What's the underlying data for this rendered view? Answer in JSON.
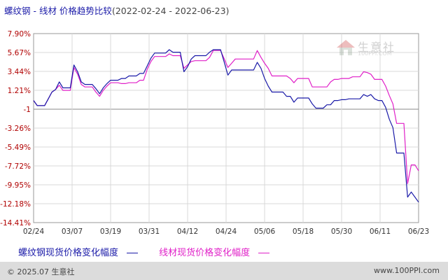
{
  "header": {
    "title": "螺纹钢 - 线材 价格趋势比较",
    "date_range": "(2022-02-24 - 2022-06-23)"
  },
  "colors": {
    "series_a": "#1a1aa8",
    "series_b": "#e020c8",
    "grid": "#d9d9d9",
    "zero_line": "#888888"
  },
  "chart_data": {
    "type": "line",
    "title": "螺纹钢 - 线材 价格趋势比较",
    "xlabel": "",
    "ylabel": "",
    "x_ticks": [
      "02/24",
      "03/07",
      "03/19",
      "03/31",
      "04/12",
      "04/24",
      "05/06",
      "05/18",
      "05/30",
      "06/11",
      "06/23"
    ],
    "y_ticks": [
      "7.90%",
      "5.67%",
      "3.44%",
      "1.21%",
      "-1",
      "-3.26%",
      "-5.49%",
      "-7.72%",
      "-9.95%",
      "-12.18%",
      "-14.41%"
    ],
    "ylim": [
      -14.41,
      7.9
    ],
    "grid": true,
    "legend_position": "bottom",
    "series": [
      {
        "name": "螺纹钢现货价格变化幅度",
        "points": [
          [
            0,
            0
          ],
          [
            1,
            -0.6
          ],
          [
            2,
            -0.6
          ],
          [
            3,
            -0.6
          ],
          [
            4,
            0.2
          ],
          [
            5,
            1.0
          ],
          [
            6,
            1.3
          ],
          [
            7,
            2.2
          ],
          [
            8,
            1.5
          ],
          [
            9,
            1.5
          ],
          [
            10,
            1.5
          ],
          [
            11,
            4.2
          ],
          [
            12,
            3.4
          ],
          [
            13,
            2.2
          ],
          [
            14,
            1.9
          ],
          [
            15,
            1.9
          ],
          [
            16,
            1.9
          ],
          [
            17,
            1.4
          ],
          [
            18,
            0.8
          ],
          [
            19,
            1.5
          ],
          [
            20,
            2.0
          ],
          [
            21,
            2.4
          ],
          [
            22,
            2.4
          ],
          [
            23,
            2.4
          ],
          [
            24,
            2.6
          ],
          [
            25,
            2.6
          ],
          [
            26,
            2.9
          ],
          [
            27,
            2.9
          ],
          [
            28,
            2.9
          ],
          [
            29,
            3.2
          ],
          [
            30,
            3.2
          ],
          [
            31,
            4.1
          ],
          [
            32,
            5.0
          ],
          [
            33,
            5.6
          ],
          [
            34,
            5.6
          ],
          [
            35,
            5.6
          ],
          [
            36,
            5.6
          ],
          [
            37,
            6.0
          ],
          [
            38,
            5.7
          ],
          [
            39,
            5.7
          ],
          [
            40,
            5.7
          ],
          [
            41,
            3.4
          ],
          [
            42,
            4.0
          ],
          [
            43,
            4.9
          ],
          [
            44,
            5.3
          ],
          [
            45,
            5.3
          ],
          [
            46,
            5.3
          ],
          [
            47,
            5.3
          ],
          [
            48,
            5.7
          ],
          [
            49,
            6.0
          ],
          [
            50,
            6.0
          ],
          [
            51,
            6.0
          ],
          [
            52,
            4.5
          ],
          [
            53,
            3.0
          ],
          [
            54,
            3.6
          ],
          [
            55,
            3.6
          ],
          [
            56,
            3.6
          ],
          [
            57,
            3.6
          ],
          [
            58,
            3.6
          ],
          [
            59,
            3.6
          ],
          [
            60,
            3.6
          ],
          [
            61,
            4.5
          ],
          [
            62,
            3.8
          ],
          [
            63,
            2.6
          ],
          [
            64,
            1.7
          ],
          [
            65,
            1.0
          ],
          [
            66,
            1.0
          ],
          [
            67,
            1.0
          ],
          [
            68,
            1.0
          ],
          [
            69,
            0.5
          ],
          [
            70,
            0.5
          ],
          [
            71,
            -0.2
          ],
          [
            72,
            0.3
          ],
          [
            73,
            0.3
          ],
          [
            74,
            0.3
          ],
          [
            75,
            0.3
          ],
          [
            76,
            -0.4
          ],
          [
            77,
            -0.9
          ],
          [
            78,
            -0.9
          ],
          [
            79,
            -0.9
          ],
          [
            80,
            -0.5
          ],
          [
            81,
            -0.5
          ],
          [
            82,
            0.0
          ],
          [
            83,
            0.0
          ],
          [
            84,
            0.1
          ],
          [
            85,
            0.1
          ],
          [
            86,
            0.2
          ],
          [
            87,
            0.2
          ],
          [
            88,
            0.2
          ],
          [
            89,
            0.2
          ],
          [
            90,
            0.7
          ],
          [
            91,
            0.5
          ],
          [
            92,
            0.7
          ],
          [
            93,
            0.2
          ],
          [
            94,
            0.0
          ],
          [
            95,
            0.0
          ],
          [
            96,
            -0.8
          ],
          [
            97,
            -2.2
          ],
          [
            98,
            -3.2
          ],
          [
            99,
            -6.2
          ],
          [
            100,
            -6.2
          ],
          [
            101,
            -6.2
          ],
          [
            102,
            -11.4
          ],
          [
            103,
            -10.8
          ],
          [
            104,
            -11.4
          ],
          [
            105,
            -12.0
          ]
        ]
      },
      {
        "name": "线材现货价格变化幅度",
        "points": [
          [
            0,
            0
          ],
          [
            1,
            -0.6
          ],
          [
            2,
            -0.6
          ],
          [
            3,
            -0.6
          ],
          [
            4,
            0.2
          ],
          [
            5,
            1.0
          ],
          [
            6,
            1.3
          ],
          [
            7,
            1.8
          ],
          [
            8,
            1.2
          ],
          [
            9,
            1.2
          ],
          [
            10,
            1.2
          ],
          [
            11,
            3.9
          ],
          [
            12,
            3.1
          ],
          [
            13,
            1.9
          ],
          [
            14,
            1.6
          ],
          [
            15,
            1.6
          ],
          [
            16,
            1.6
          ],
          [
            17,
            1.0
          ],
          [
            18,
            0.5
          ],
          [
            19,
            1.2
          ],
          [
            20,
            1.7
          ],
          [
            21,
            2.1
          ],
          [
            22,
            2.1
          ],
          [
            23,
            2.1
          ],
          [
            24,
            2.0
          ],
          [
            25,
            2.0
          ],
          [
            26,
            2.1
          ],
          [
            27,
            2.1
          ],
          [
            28,
            2.1
          ],
          [
            29,
            2.4
          ],
          [
            30,
            2.4
          ],
          [
            31,
            3.7
          ],
          [
            32,
            4.6
          ],
          [
            33,
            5.2
          ],
          [
            34,
            5.2
          ],
          [
            35,
            5.2
          ],
          [
            36,
            5.2
          ],
          [
            37,
            5.5
          ],
          [
            38,
            5.3
          ],
          [
            39,
            5.3
          ],
          [
            40,
            5.3
          ],
          [
            41,
            3.8
          ],
          [
            42,
            4.2
          ],
          [
            43,
            4.6
          ],
          [
            44,
            4.7
          ],
          [
            45,
            4.7
          ],
          [
            46,
            4.7
          ],
          [
            47,
            4.7
          ],
          [
            48,
            5.1
          ],
          [
            49,
            5.9
          ],
          [
            50,
            5.9
          ],
          [
            51,
            5.9
          ],
          [
            52,
            4.9
          ],
          [
            53,
            3.9
          ],
          [
            54,
            4.4
          ],
          [
            55,
            4.9
          ],
          [
            56,
            4.9
          ],
          [
            57,
            4.9
          ],
          [
            58,
            4.9
          ],
          [
            59,
            4.9
          ],
          [
            60,
            4.9
          ],
          [
            61,
            5.9
          ],
          [
            62,
            5.1
          ],
          [
            63,
            4.4
          ],
          [
            64,
            3.8
          ],
          [
            65,
            2.9
          ],
          [
            66,
            2.9
          ],
          [
            67,
            2.9
          ],
          [
            68,
            2.9
          ],
          [
            69,
            2.9
          ],
          [
            70,
            2.6
          ],
          [
            71,
            2.1
          ],
          [
            72,
            2.6
          ],
          [
            73,
            2.6
          ],
          [
            74,
            2.6
          ],
          [
            75,
            2.6
          ],
          [
            76,
            1.6
          ],
          [
            77,
            1.6
          ],
          [
            78,
            1.6
          ],
          [
            79,
            1.6
          ],
          [
            80,
            1.6
          ],
          [
            81,
            2.2
          ],
          [
            82,
            2.5
          ],
          [
            83,
            2.5
          ],
          [
            84,
            2.6
          ],
          [
            85,
            2.6
          ],
          [
            86,
            2.6
          ],
          [
            87,
            2.8
          ],
          [
            88,
            2.8
          ],
          [
            89,
            2.8
          ],
          [
            90,
            3.4
          ],
          [
            91,
            3.3
          ],
          [
            92,
            3.1
          ],
          [
            93,
            2.5
          ],
          [
            94,
            2.5
          ],
          [
            95,
            2.5
          ],
          [
            96,
            1.7
          ],
          [
            97,
            0.6
          ],
          [
            98,
            -0.4
          ],
          [
            99,
            -2.7
          ],
          [
            100,
            -2.7
          ],
          [
            101,
            -2.7
          ],
          [
            102,
            -9.8
          ],
          [
            103,
            -7.6
          ],
          [
            104,
            -7.6
          ],
          [
            105,
            -8.3
          ]
        ]
      }
    ]
  },
  "legend": {
    "series_a_label": "螺纹钢现货价格变化幅度",
    "series_b_label": "线材现货价格变化幅度"
  },
  "watermark": {
    "name": "生意社",
    "sub": "100PPI.COM"
  },
  "footer": {
    "copyright": "© 2025.07 生意社",
    "url": "www.100PPI.com"
  }
}
